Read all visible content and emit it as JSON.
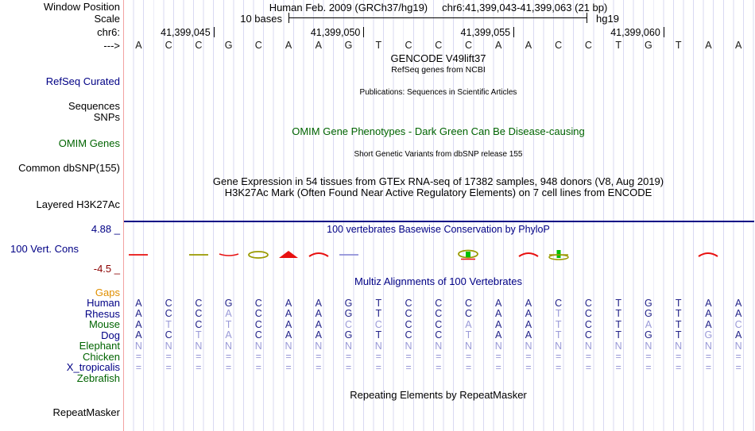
{
  "colors": {
    "navy": "#000085",
    "green": "#006400",
    "orange": "#e08f00",
    "maroon": "#8b0000",
    "grid": "#d9d9f2",
    "edge": "#f2a2a2",
    "match": "#22228a",
    "mismatch": "#9a9ad8",
    "cons_red": "#e81010",
    "cons_olive": "#9a9a00",
    "cons_green": "#00c000",
    "cons_blue": "#8f8fd8"
  },
  "header": {
    "window_position_label": "Window Position",
    "assembly": "Human Feb. 2009 (GRCh37/hg19)",
    "position": "chr6:41,399,043-41,399,063 (21 bp)",
    "scale_label": "Scale",
    "scale_text": "10 bases",
    "scale_right": "hg19",
    "chrom_label": "chr6:",
    "strand_label": "--->",
    "coordinates": [
      "41,399,045",
      "41,399,050",
      "41,399,055",
      "41,399,060"
    ]
  },
  "sequence": "ACCGCAAGTCCCAACCTGTAA",
  "tracks": {
    "gencode_title": "GENCODE V49lift37",
    "refseq_sub": "RefSeq genes from NCBI",
    "refseq_label": "RefSeq Curated",
    "publications_text": "Publications: Sequences in Scientific Articles",
    "sequences_label": "Sequences",
    "snps_label": "SNPs",
    "omim_text": "OMIM Gene Phenotypes - Dark Green Can Be Disease-causing",
    "omim_label": "OMIM Genes",
    "dbsnp_text": "Short Genetic Variants from dbSNP release 155",
    "dbsnp_label": "Common dbSNP(155)",
    "gtex_text": "Gene Expression in 54 tissues from GTEx RNA-seq of 17382 samples, 948 donors (V8, Aug 2019)",
    "h3k27ac_text": "H3K27Ac Mark (Often Found Near Active Regulatory Elements) on 7 cell lines from ENCODE",
    "h3k27ac_label": "Layered H3K27Ac",
    "repeatmasker_text": "Repeating Elements by RepeatMasker",
    "repeatmasker_label": "RepeatMasker"
  },
  "conservation": {
    "label": "100 Vert. Cons",
    "title": "100 vertebrates Basewise Conservation by PhyloP",
    "max_label": "4.88 _",
    "min_label": "-4.5 _",
    "marks": [
      {
        "col": 1,
        "type": "dash",
        "color_key": "cons_red"
      },
      {
        "col": 3,
        "type": "dash",
        "color_key": "cons_olive"
      },
      {
        "col": 4,
        "type": "dip",
        "color_key": "cons_red"
      },
      {
        "col": 5,
        "type": "ellipse",
        "color_key": "cons_olive"
      },
      {
        "col": 6,
        "type": "peak",
        "color_key": "cons_red"
      },
      {
        "col": 7,
        "type": "arc",
        "color_key": "cons_red"
      },
      {
        "col": 8,
        "type": "dash",
        "color_key": "cons_blue"
      },
      {
        "col": 12,
        "type": "ellipse-square",
        "color_key": "cons_olive",
        "color_key2": "cons_green",
        "color_key3": "cons_red"
      },
      {
        "col": 14,
        "type": "arc",
        "color_key": "cons_red"
      },
      {
        "col": 15,
        "type": "bar-ellipse",
        "color_key": "cons_green",
        "color_key2": "cons_olive"
      },
      {
        "col": 20,
        "type": "arc",
        "color_key": "cons_red"
      }
    ]
  },
  "multiz": {
    "title": "Multiz Alignments of 100 Vertebrates",
    "rows": [
      {
        "name": "Gaps",
        "color_key": "orange",
        "letters": ""
      },
      {
        "name": "Human",
        "color_key": "navy",
        "letters": "ACCGCAAGTCCCAACCTGTAA"
      },
      {
        "name": "Rhesus",
        "color_key": "navy",
        "letters": "ACCACAAGTCCCAATCTGTAA"
      },
      {
        "name": "Mouse",
        "color_key": "green",
        "letters": "ATCTCAACCCCAAATCTATAC"
      },
      {
        "name": "Dog",
        "color_key": "navy",
        "letters": "ACTACAAGTCCTAATCTGTGA"
      },
      {
        "name": "Elephant",
        "color_key": "green",
        "letters": "NNNNNNNNNNNNNNNNNNNNN"
      },
      {
        "name": "Chicken",
        "color_key": "green",
        "letters": "====================="
      },
      {
        "name": "X_tropicalis",
        "color_key": "navy",
        "letters": "====================="
      },
      {
        "name": "Zebrafish",
        "color_key": "green",
        "letters": ""
      }
    ]
  }
}
